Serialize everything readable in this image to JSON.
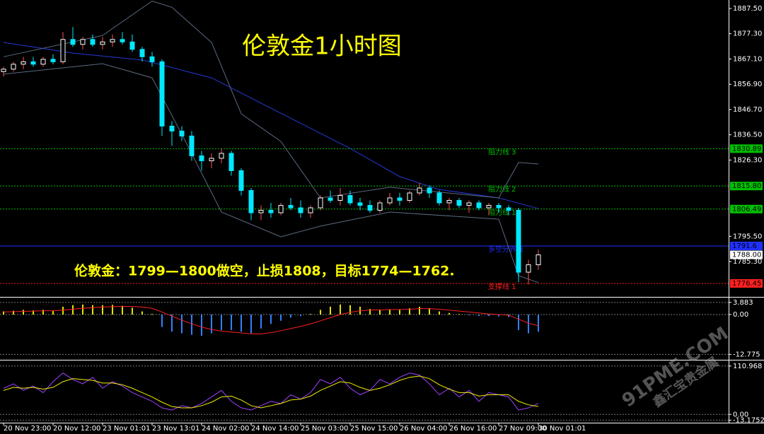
{
  "chart_data": [
    {
      "type": "candlestick",
      "title": "伦敦金1小时图",
      "annotation": "伦敦金：1799—1800做空，止损1808，目标1774—1762.",
      "categories": [
        "20 Nov 23:00",
        null,
        null,
        null,
        null,
        "20 Nov 12:00",
        null,
        null,
        null,
        null,
        "23 Nov 01:01",
        null,
        null,
        null,
        null,
        "23 Nov 13:01",
        null,
        null,
        null,
        null,
        "24 Nov 02:00",
        null,
        null,
        null,
        null,
        "24 Nov 14:00",
        null,
        null,
        null,
        null,
        "25 Nov 03:00",
        null,
        null,
        null,
        null,
        "25 Nov 15:00",
        null,
        null,
        null,
        null,
        "26 Nov 04:00",
        null,
        null,
        null,
        null,
        "26 Nov 16:00",
        null,
        null,
        null,
        null,
        "27 Nov 09:00",
        null,
        null,
        null,
        "30 Nov 01:01"
      ],
      "open": [
        1862,
        1863,
        1865,
        1866,
        1865,
        1867,
        1866,
        1875,
        1873,
        1875,
        1873,
        1874,
        1875,
        1874,
        1871,
        1868,
        1866,
        1840,
        1838,
        1836,
        1828,
        1826,
        1827,
        1829,
        1822,
        1814,
        1805,
        1806,
        1805,
        1808,
        1807,
        1805,
        1807,
        1811,
        1810,
        1812,
        1809,
        1808,
        1806,
        1809,
        1811,
        1810,
        1813,
        1815,
        1813,
        1809,
        1810,
        1808,
        1809,
        1807,
        1808,
        1807,
        1806,
        1781,
        1784
      ],
      "high": [
        1864,
        1866,
        1868,
        1868,
        1868,
        1869,
        1878,
        1880,
        1876,
        1877,
        1876,
        1877,
        1878,
        1877,
        1872,
        1870,
        1867,
        1842,
        1840,
        1838,
        1830,
        1829,
        1831,
        1830,
        1823,
        1815,
        1808,
        1809,
        1809,
        1811,
        1810,
        1808,
        1812,
        1814,
        1815,
        1814,
        1811,
        1810,
        1810,
        1813,
        1813,
        1814,
        1817,
        1816,
        1814,
        1811,
        1811,
        1810,
        1810,
        1809,
        1809,
        1808,
        1807,
        1786,
        1790
      ],
      "low": [
        1860,
        1862,
        1863,
        1864,
        1864,
        1865,
        1865,
        1872,
        1871,
        1872,
        1871,
        1872,
        1873,
        1870,
        1866,
        1864,
        1836,
        1832,
        1834,
        1826,
        1822,
        1823,
        1825,
        1820,
        1812,
        1802,
        1802,
        1803,
        1804,
        1806,
        1803,
        1803,
        1806,
        1809,
        1808,
        1808,
        1806,
        1805,
        1805,
        1808,
        1808,
        1809,
        1812,
        1811,
        1808,
        1806,
        1807,
        1805,
        1806,
        1804,
        1805,
        1804,
        1777,
        1776,
        1782
      ],
      "close": [
        1863,
        1865,
        1866,
        1865,
        1867,
        1866,
        1875,
        1873,
        1875,
        1873,
        1874,
        1875,
        1874,
        1871,
        1868,
        1866,
        1840,
        1838,
        1836,
        1828,
        1826,
        1827,
        1829,
        1822,
        1814,
        1805,
        1806,
        1805,
        1808,
        1807,
        1805,
        1807,
        1811,
        1810,
        1812,
        1809,
        1808,
        1806,
        1809,
        1811,
        1810,
        1813,
        1815,
        1813,
        1809,
        1810,
        1808,
        1809,
        1807,
        1808,
        1807,
        1806,
        1781,
        1784,
        1788
      ],
      "up_color": "#ff5050",
      "down_color": "#00e8ff",
      "overlays": [
        {
          "color": "#2638d8",
          "x": [
            0,
            7,
            14,
            21,
            28,
            35,
            40,
            44,
            50,
            54
          ],
          "values": [
            1873.8,
            1869.5,
            1866.7,
            1859.5,
            1845.2,
            1831,
            1819.6,
            1814.4,
            1811,
            1806.7
          ]
        },
        {
          "color": "#5a6a80",
          "x": [
            0,
            10,
            15,
            17,
            21,
            24,
            28,
            32,
            39,
            50,
            52,
            54
          ],
          "values": [
            1868,
            1876.6,
            1890.5,
            1888,
            1873.8,
            1845,
            1833.8,
            1811,
            1815.3,
            1811,
            1825.3,
            1824.7
          ]
        },
        {
          "color": "#5a6a80",
          "x": [
            0,
            10,
            15,
            18,
            22,
            28,
            32,
            39,
            50,
            52,
            54
          ],
          "values": [
            1861,
            1865.2,
            1859.5,
            1836.7,
            1805.3,
            1795.3,
            1799.6,
            1805.3,
            1802.4,
            1779.6,
            1776.8
          ]
        }
      ],
      "levels": [
        {
          "value": 1830.89,
          "text": "阻力线 3",
          "color": "#00c000"
        },
        {
          "value": 1815.8,
          "label": "1815.80",
          "text": "阻力线 2",
          "color": "#00c000"
        },
        {
          "value": 1806.49,
          "text": "阻力线 1",
          "color": "#00c000"
        },
        {
          "value": 1791.6,
          "text": "多空分界线",
          "color": "#2030ff"
        },
        {
          "value": 1776.45,
          "text": "支撑线 1",
          "color": "#ff2020"
        }
      ],
      "current_price": {
        "value": 1788,
        "label": "1788.00"
      },
      "ylim": [
        1771.03,
        1890.93
      ],
      "yticks": [
        {
          "value": 1887.5,
          "label": "1887.50"
        },
        {
          "value": 1877.3,
          "label": "1877.30"
        },
        {
          "value": 1867.1,
          "label": "1867.10"
        },
        {
          "value": 1856.9,
          "label": "1856.90"
        },
        {
          "value": 1846.7,
          "label": "1846.70"
        },
        {
          "value": 1836.5,
          "label": "1836.50"
        },
        {
          "value": 1826.3,
          "label": "1826.30"
        },
        {
          "value": 1795.5,
          "label": "1795.50"
        },
        {
          "value": 1785.3,
          "label": "1785.30"
        }
      ]
    },
    {
      "type": "macd",
      "up_color": "#e8e000",
      "down_color": "#3080ff",
      "values": [
        1.0,
        1.2,
        1.5,
        1.3,
        1.5,
        1.2,
        2.5,
        3.0,
        3.2,
        3.0,
        3.0,
        3.1,
        2.8,
        2.2,
        1.0,
        0.2,
        -4,
        -5.5,
        -6,
        -6.5,
        -6.8,
        -6,
        -5,
        -5,
        -5.5,
        -6,
        -4.5,
        -3,
        -2,
        -1,
        -0.5,
        0.2,
        1.5,
        2.5,
        3.2,
        3.0,
        2.5,
        1.8,
        1.5,
        1.6,
        1.5,
        2.0,
        2.5,
        2.0,
        1.0,
        0.5,
        0.2,
        -0.2,
        -0.5,
        -0.5,
        -0.6,
        -0.8,
        -5,
        -6,
        -5.5
      ],
      "signal": {
        "color": "#ff2020",
        "values": [
          0.8,
          0.9,
          1.0,
          1.1,
          1.2,
          1.2,
          1.4,
          1.7,
          2.0,
          2.2,
          2.4,
          2.5,
          2.6,
          2.6,
          2.4,
          2.0,
          0.8,
          -0.5,
          -1.8,
          -3.0,
          -4.0,
          -4.8,
          -5.3,
          -5.6,
          -5.9,
          -6.2,
          -6.2,
          -5.8,
          -5.2,
          -4.5,
          -3.8,
          -3.0,
          -2.0,
          -1.0,
          0,
          0.7,
          1.2,
          1.4,
          1.5,
          1.6,
          1.6,
          1.7,
          1.9,
          1.9,
          1.7,
          1.4,
          1.1,
          0.8,
          0.5,
          0.2,
          0,
          -0.2,
          -1.5,
          -2.8,
          -3.6
        ]
      },
      "ylim": [
        -14.5,
        5.2
      ],
      "yticks": [
        3.883,
        {
          "value": 0,
          "label": "0.00"
        },
        -12.775
      ]
    },
    {
      "type": "line",
      "series": [
        {
          "color": "#a040ff",
          "values": [
            60,
            70,
            55,
            65,
            50,
            75,
            95,
            80,
            70,
            85,
            60,
            75,
            65,
            50,
            40,
            30,
            15,
            10,
            20,
            15,
            25,
            40,
            55,
            30,
            15,
            10,
            20,
            30,
            25,
            45,
            35,
            50,
            80,
            70,
            85,
            60,
            45,
            55,
            80,
            70,
            85,
            95,
            90,
            70,
            45,
            60,
            40,
            55,
            30,
            50,
            45,
            40,
            10,
            15,
            25
          ]
        },
        {
          "color": "#f0f000",
          "values": [
            55,
            62,
            60,
            62,
            58,
            62,
            75,
            82,
            80,
            78,
            72,
            72,
            68,
            60,
            50,
            40,
            28,
            18,
            15,
            15,
            20,
            28,
            40,
            42,
            33,
            20,
            15,
            20,
            25,
            33,
            35,
            42,
            55,
            65,
            75,
            72,
            62,
            55,
            60,
            68,
            78,
            85,
            88,
            82,
            68,
            58,
            50,
            50,
            42,
            45,
            45,
            45,
            30,
            22,
            18
          ]
        }
      ],
      "ylim": [
        -19,
        122
      ],
      "yticks": [
        110.968,
        {
          "value": 0,
          "label": "0.00"
        },
        -13.1752
      ]
    }
  ],
  "watermark": {
    "site": "91PME.COM",
    "brand": "鑫汇宝贵金属"
  }
}
